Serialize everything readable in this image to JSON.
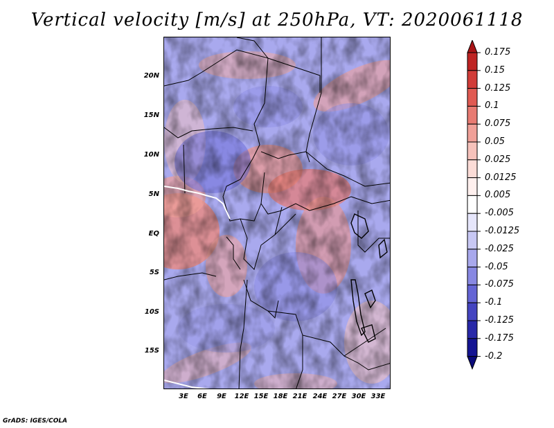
{
  "title": "Vertical velocity [m/s] at 250hPa, VT: 2020061118",
  "credit": "GrADS: IGES/COLA",
  "map": {
    "latitude_labels": [
      "20N",
      "15N",
      "10N",
      "5N",
      "EQ",
      "5S",
      "10S",
      "15S"
    ],
    "longitude_labels": [
      "3E",
      "6E",
      "9E",
      "12E",
      "15E",
      "18E",
      "21E",
      "24E",
      "27E",
      "30E",
      "33E"
    ]
  },
  "colorbar": {
    "labels": [
      "0.175",
      "0.15",
      "0.125",
      "0.1",
      "0.075",
      "0.05",
      "0.025",
      "0.0125",
      "0.005",
      "-0.005",
      "-0.0125",
      "-0.025",
      "-0.05",
      "-0.075",
      "-0.1",
      "-0.125",
      "-0.175",
      "-0.2"
    ],
    "colors": [
      "#a81416",
      "#be2423",
      "#d13c38",
      "#e05a52",
      "#e87b72",
      "#f0a098",
      "#f6c2bb",
      "#fbdcd7",
      "#fff0ee",
      "#ffffff",
      "#e6e6fb",
      "#c8c8f4",
      "#a8a8ec",
      "#8888e2",
      "#6464d4",
      "#4444c0",
      "#2828a8",
      "#141492",
      "#0a0a7a"
    ]
  }
}
